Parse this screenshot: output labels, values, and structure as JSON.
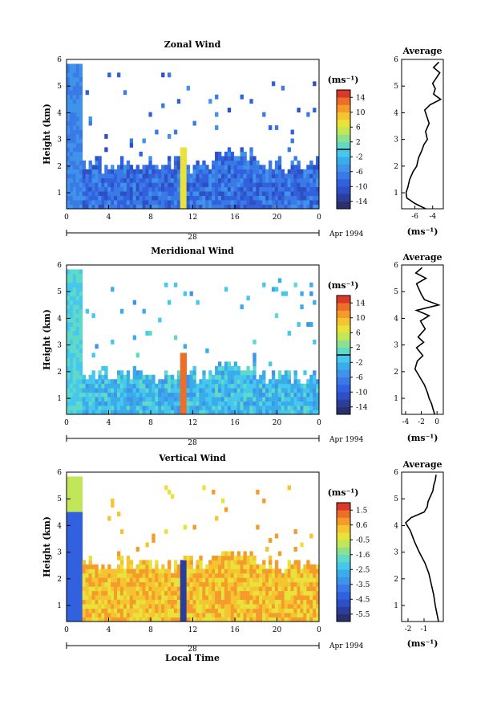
{
  "figure": {
    "xlabel": "Local Time",
    "ylabel": "Height (km)",
    "date_label": "Apr 1994",
    "day_label": "28",
    "avg_title": "Average",
    "units": "(ms⁻¹)"
  },
  "chart_data": [
    {
      "type": "heatmap",
      "title": "Zonal Wind",
      "xlabel": "Local Time",
      "ylabel": "Height (km)",
      "x_ticks": [
        "0",
        "4",
        "8",
        "12",
        "16",
        "20",
        "0"
      ],
      "y_ticks": [
        "1",
        "2",
        "3",
        "4",
        "5",
        "6"
      ],
      "xlim": [
        0,
        24
      ],
      "ylim": [
        0.4,
        6
      ],
      "colorbar": {
        "unit": "(ms⁻¹)",
        "labels": [
          "14",
          "10",
          "6",
          "2",
          "-2",
          "-6",
          "-10",
          "-14"
        ],
        "range": [
          -16,
          16
        ],
        "marker": 0
      },
      "description_values": {
        "boundary_layer_top_km": 2.0,
        "typical_value": -8,
        "anomaly_hour": 11
      }
    },
    {
      "type": "heatmap",
      "title": "Meridional Wind",
      "xlabel": "Local Time",
      "ylabel": "Height (km)",
      "x_ticks": [
        "0",
        "4",
        "8",
        "12",
        "16",
        "20",
        "0"
      ],
      "y_ticks": [
        "1",
        "2",
        "3",
        "4",
        "5",
        "6"
      ],
      "xlim": [
        0,
        24
      ],
      "ylim": [
        0.4,
        6
      ],
      "colorbar": {
        "unit": "(ms⁻¹)",
        "labels": [
          "14",
          "10",
          "6",
          "2",
          "-2",
          "-6",
          "-10",
          "-14"
        ],
        "range": [
          -16,
          16
        ],
        "marker": 0
      },
      "description_values": {
        "boundary_layer_top_km": 1.8,
        "typical_value": -2,
        "anomaly_hour": 11
      }
    },
    {
      "type": "heatmap",
      "title": "Vertical Wind",
      "xlabel": "Local Time",
      "ylabel": "Height (km)",
      "x_ticks": [
        "0",
        "4",
        "8",
        "12",
        "16",
        "20",
        "0"
      ],
      "y_ticks": [
        "1",
        "2",
        "3",
        "4",
        "5",
        "6"
      ],
      "xlim": [
        0,
        24
      ],
      "ylim": [
        0.4,
        6
      ],
      "colorbar": {
        "unit": "(ms⁻¹)",
        "labels": [
          "1.5",
          "0.6",
          "-0.5",
          "-1.6",
          "-2.5",
          "-3.5",
          "-4.5",
          "-5.5"
        ],
        "range": [
          -6.0,
          2.0
        ],
        "marker": null
      },
      "description_values": {
        "boundary_layer_top_km": 2.5,
        "typical_value": 0.3,
        "anomaly_hour": 11
      }
    },
    {
      "type": "line",
      "title": "Average",
      "xlabel": "(ms⁻¹)",
      "ylabel": "Height (km)",
      "x_ticks": [
        "-6",
        "-4"
      ],
      "xlim": [
        -7.5,
        -2.8
      ],
      "ylim": [
        0.4,
        6
      ],
      "y": [
        0.4,
        0.6,
        0.8,
        1.0,
        1.2,
        1.5,
        1.8,
        2.0,
        2.3,
        2.6,
        2.8,
        3.0,
        3.3,
        3.6,
        3.9,
        4.1,
        4.3,
        4.5,
        4.7,
        4.9,
        5.1,
        5.3,
        5.5,
        5.7,
        5.9
      ],
      "x": [
        -4.8,
        -6.0,
        -6.9,
        -7.0,
        -6.8,
        -6.6,
        -6.2,
        -5.8,
        -5.6,
        -5.2,
        -5.0,
        -4.6,
        -4.8,
        -4.4,
        -4.7,
        -4.9,
        -4.3,
        -3.1,
        -3.9,
        -3.7,
        -4.0,
        -3.6,
        -3.2,
        -3.9,
        -3.3
      ]
    },
    {
      "type": "line",
      "title": "Average",
      "xlabel": "(ms⁻¹)",
      "ylabel": "Height (km)",
      "x_ticks": [
        "-4",
        "-2",
        "0"
      ],
      "xlim": [
        -4.5,
        0.8
      ],
      "ylim": [
        0.4,
        6
      ],
      "y": [
        0.4,
        0.6,
        0.8,
        1.0,
        1.2,
        1.5,
        1.8,
        2.1,
        2.4,
        2.6,
        2.9,
        3.1,
        3.3,
        3.6,
        3.9,
        4.1,
        4.3,
        4.5,
        4.7,
        4.9,
        5.1,
        5.3,
        5.5,
        5.7,
        5.9
      ],
      "x": [
        -0.3,
        -0.5,
        -0.7,
        -1.0,
        -1.2,
        -1.6,
        -2.2,
        -2.8,
        -2.5,
        -1.8,
        -2.6,
        -1.7,
        -2.4,
        -1.5,
        -2.1,
        -1.0,
        -2.6,
        0.2,
        -1.6,
        -2.0,
        -2.3,
        -2.6,
        -1.4,
        -2.7,
        -1.9
      ]
    },
    {
      "type": "line",
      "title": "Average",
      "xlabel": "(ms⁻¹)",
      "ylabel": "Height (km)",
      "x_ticks": [
        "-2",
        "-1"
      ],
      "xlim": [
        -2.4,
        0.2
      ],
      "ylim": [
        0.4,
        6
      ],
      "y": [
        0.4,
        0.7,
        1.0,
        1.4,
        1.8,
        2.2,
        2.6,
        3.0,
        3.4,
        3.8,
        4.1,
        4.3,
        4.5,
        4.7,
        4.9,
        5.1,
        5.3,
        5.5,
        5.7,
        5.9
      ],
      "x": [
        -0.1,
        -0.2,
        -0.3,
        -0.4,
        -0.55,
        -0.7,
        -0.95,
        -1.3,
        -1.6,
        -1.85,
        -2.15,
        -1.8,
        -1.0,
        -0.8,
        -0.75,
        -0.6,
        -0.45,
        -0.4,
        -0.3,
        -0.25
      ]
    }
  ]
}
